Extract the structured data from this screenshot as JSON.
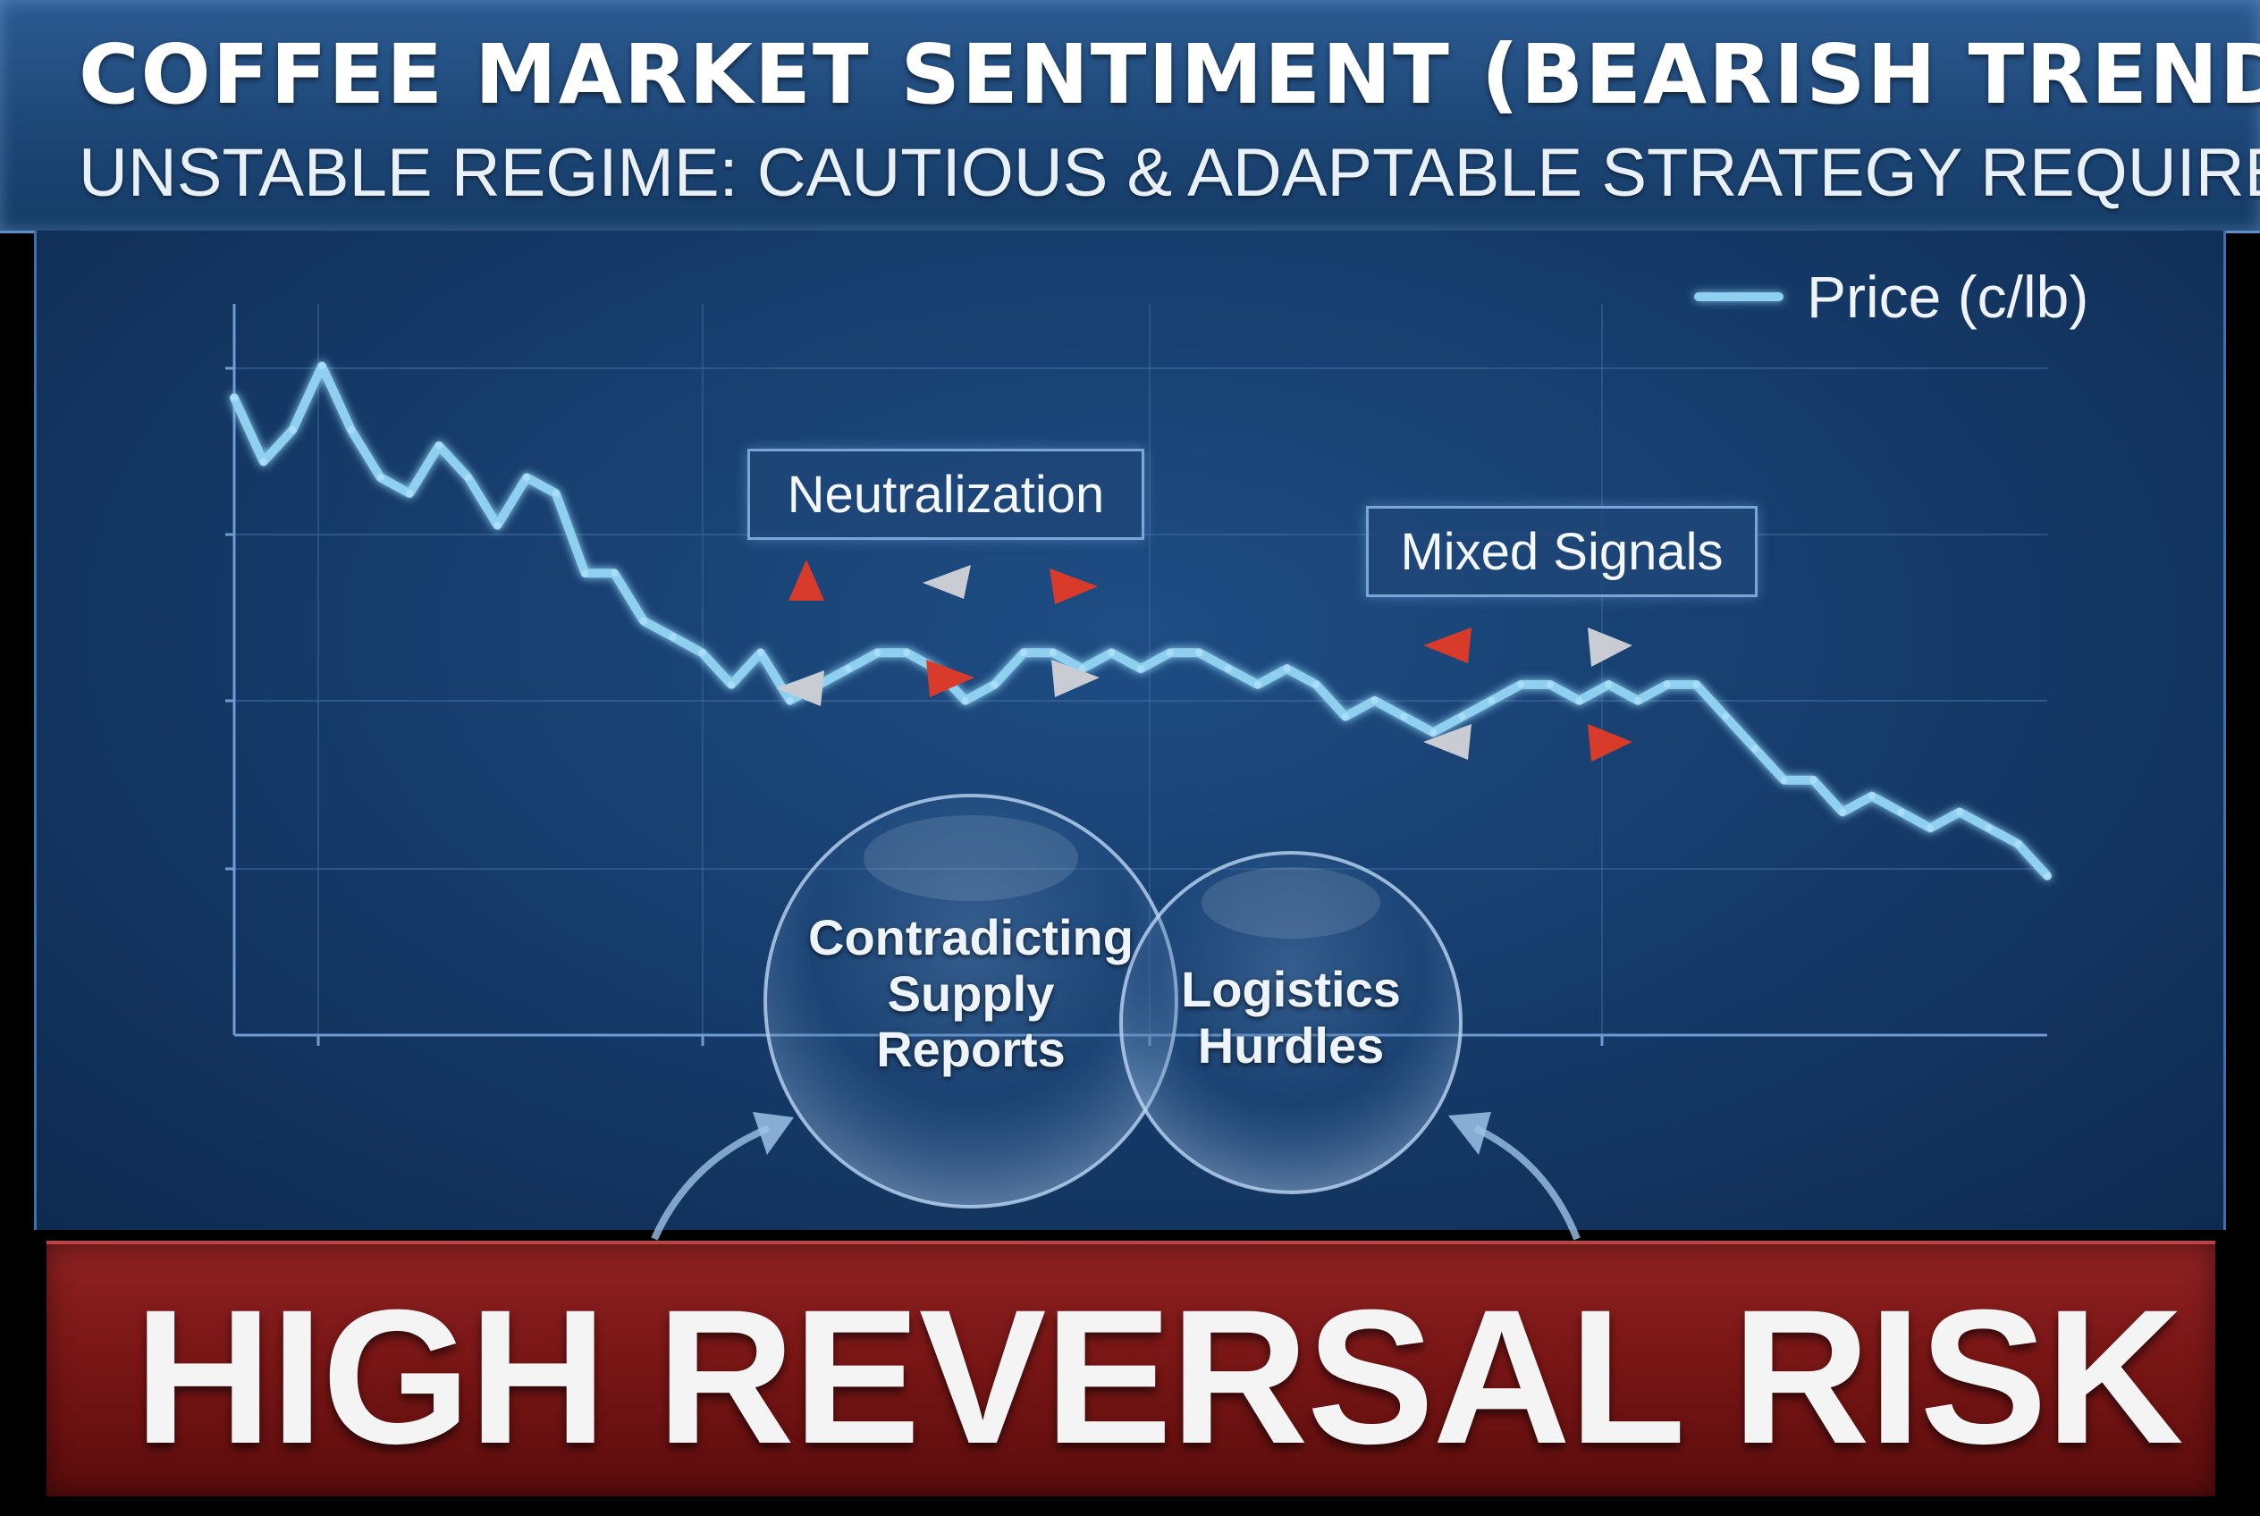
{
  "header": {
    "title": "COFFEE MARKET SENTIMENT (BEARISH TREND)",
    "subtitle": "UNSTABLE REGIME: CAUTIOUS & ADAPTABLE STRATEGY REQUIRED"
  },
  "chart_data": {
    "type": "line",
    "title": "COFFEE MARKET SENTIMENT (BEARISH TREND)",
    "subtitle": "UNSTABLE REGIME: CAUTIOUS & ADAPTABLE STRATEGY REQUIRED",
    "xlabel": "",
    "ylabel": "",
    "grid": true,
    "legend_position": "top-right",
    "line_color": "#8fd0f0",
    "series": [
      {
        "name": "Price (c/lb)",
        "values": [
          90,
          86,
          88,
          92,
          88,
          85,
          84,
          87,
          85,
          82,
          85,
          84,
          79,
          79,
          76,
          75,
          74,
          72,
          74,
          71,
          72,
          73,
          74,
          74,
          73,
          71,
          72,
          74,
          74,
          73,
          74,
          73,
          74,
          74,
          73,
          72,
          73,
          72,
          70,
          71,
          70,
          69,
          70,
          71,
          72,
          72,
          71,
          72,
          71,
          72,
          72,
          70,
          68,
          66,
          66,
          64,
          65,
          64,
          63,
          64,
          63,
          62,
          60
        ]
      }
    ],
    "annotations": [
      "Neutralization",
      "Mixed Signals"
    ]
  },
  "bubbles": {
    "supply": [
      "Contradicting",
      "Supply",
      "Reports"
    ],
    "logistics": [
      "Logistics",
      "Hurdles"
    ]
  },
  "banner": {
    "text": "HIGH REVERSAL RISK"
  },
  "colors": {
    "accent_up": "#d93b2b",
    "accent_neutral": "#c9ccd2",
    "banner": "#7a1616",
    "panel": "#153a68"
  }
}
